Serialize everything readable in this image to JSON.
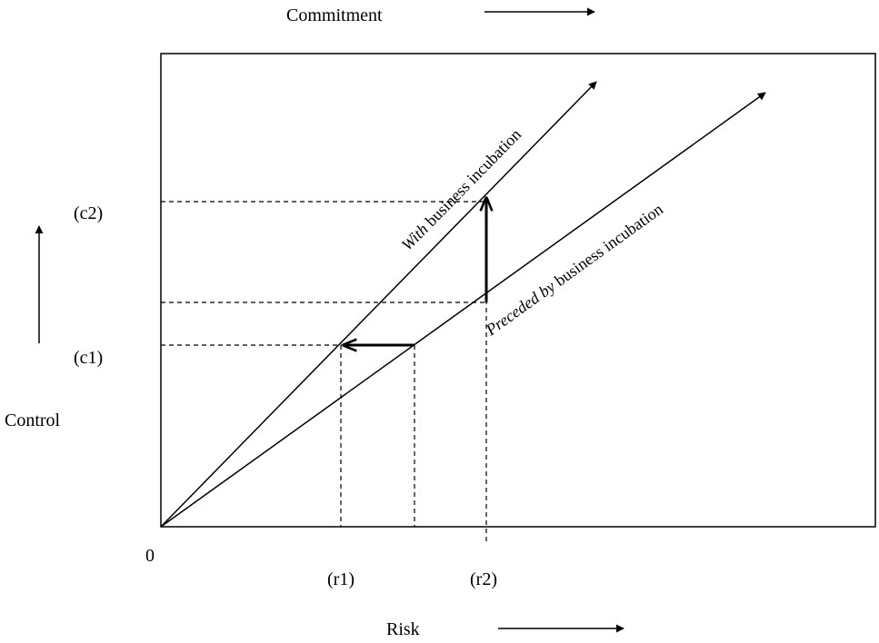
{
  "labels": {
    "commitment": "Commitment",
    "control": "Control",
    "risk": "Risk",
    "origin": "0",
    "c1": "(c1)",
    "c2": "(c2)",
    "r1": "(r1)",
    "r2": "(r2)"
  },
  "lines": {
    "with": {
      "italic": "With",
      "rest": " business incubation"
    },
    "preceded": {
      "italic": "Preceded by",
      "rest": " business incubation"
    }
  }
}
